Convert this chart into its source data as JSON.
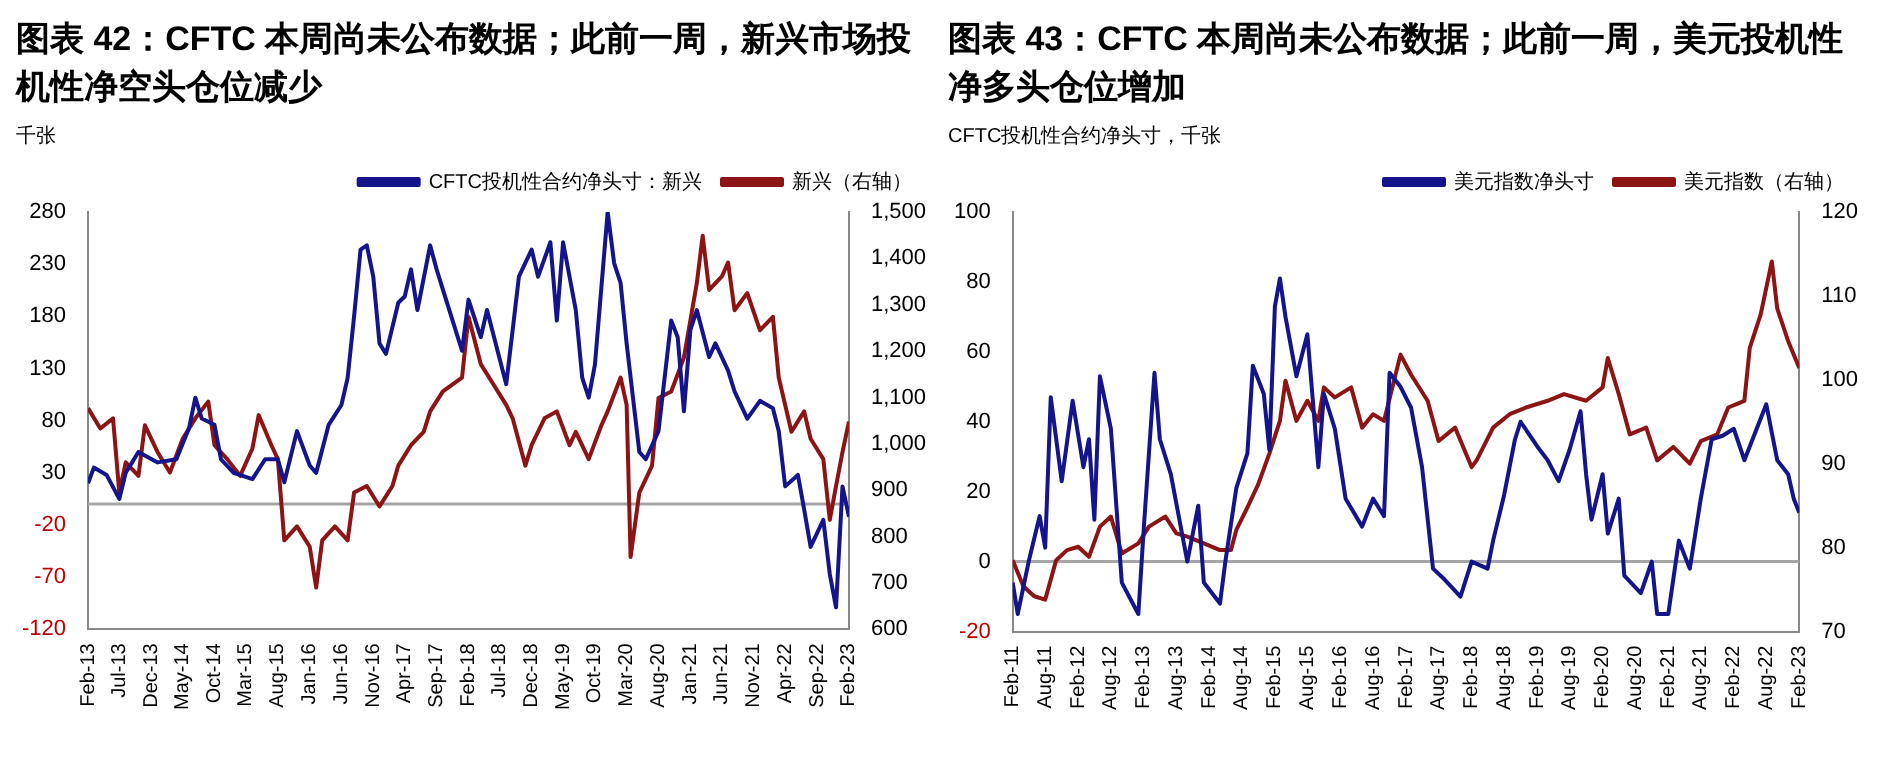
{
  "chart_data": [
    {
      "type": "line",
      "title": "图表 42：CFTC 本周尚未公布数据；此前一周，新兴市场投机性净空头仓位减少",
      "ylabel": "千张",
      "legend": "top",
      "xlim": [
        "2013-02",
        "2023-02"
      ],
      "xticks": [
        {
          "value": "2013-02",
          "label": "Feb-13"
        },
        {
          "value": "2013-07",
          "label": "Jul-13"
        },
        {
          "value": "2013-12",
          "label": "Dec-13"
        },
        {
          "value": "2014-05",
          "label": "May-14"
        },
        {
          "value": "2014-10",
          "label": "Oct-14"
        },
        {
          "value": "2015-03",
          "label": "Mar-15"
        },
        {
          "value": "2015-08",
          "label": "Aug-15"
        },
        {
          "value": "2016-01",
          "label": "Jan-16"
        },
        {
          "value": "2016-06",
          "label": "Jun-16"
        },
        {
          "value": "2016-11",
          "label": "Nov-16"
        },
        {
          "value": "2017-04",
          "label": "Apr-17"
        },
        {
          "value": "2017-09",
          "label": "Sep-17"
        },
        {
          "value": "2018-02",
          "label": "Feb-18"
        },
        {
          "value": "2018-07",
          "label": "Jul-18"
        },
        {
          "value": "2018-12",
          "label": "Dec-18"
        },
        {
          "value": "2019-05",
          "label": "May-19"
        },
        {
          "value": "2019-10",
          "label": "Oct-19"
        },
        {
          "value": "2020-03",
          "label": "Mar-20"
        },
        {
          "value": "2020-08",
          "label": "Aug-20"
        },
        {
          "value": "2021-01",
          "label": "Jan-21"
        },
        {
          "value": "2021-06",
          "label": "Jun-21"
        },
        {
          "value": "2021-11",
          "label": "Nov-21"
        },
        {
          "value": "2022-04",
          "label": "Apr-22"
        },
        {
          "value": "2022-09",
          "label": "Sep-22"
        },
        {
          "value": "2023-02",
          "label": "Feb-23"
        }
      ],
      "ylim": [
        -120,
        280
      ],
      "yticks": [
        -120,
        -70,
        -20,
        30,
        80,
        130,
        180,
        230,
        280
      ],
      "y2lim": [
        600,
        1500
      ],
      "y2ticks": [
        600,
        700,
        800,
        900,
        {
          "value": 1000,
          "label": "1,000"
        },
        {
          "value": 1100,
          "label": "1,100"
        },
        {
          "value": 1200,
          "label": "1,200"
        },
        {
          "value": 1300,
          "label": "1,300"
        },
        {
          "value": 1400,
          "label": "1,400"
        },
        {
          "value": 1500,
          "label": "1,500"
        }
      ],
      "ref_lines": [
        {
          "axis": "y",
          "value": 0,
          "color": "#a6a6a6"
        }
      ],
      "series": [
        {
          "name": "CFTC投机性合约净头寸：新兴",
          "color": "#14148c",
          "x": [
            "2013-02",
            "2013-03",
            "2013-05",
            "2013-07",
            "2013-08",
            "2013-10",
            "2014-01",
            "2014-04",
            "2014-06",
            "2014-07",
            "2014-08",
            "2014-10",
            "2014-11",
            "2015-01",
            "2015-04",
            "2015-06",
            "2015-08",
            "2015-09",
            "2015-11",
            "2016-01",
            "2016-02",
            "2016-04",
            "2016-06",
            "2016-07",
            "2016-08",
            "2016-09",
            "2016-10",
            "2016-11",
            "2016-12",
            "2017-01",
            "2017-03",
            "2017-04",
            "2017-05",
            "2017-06",
            "2017-08",
            "2017-09",
            "2017-11",
            "2018-01",
            "2018-02",
            "2018-04",
            "2018-05",
            "2018-08",
            "2018-09",
            "2018-10",
            "2018-12",
            "2019-01",
            "2019-03",
            "2019-04",
            "2019-05",
            "2019-07",
            "2019-08",
            "2019-09",
            "2019-10",
            "2019-12",
            "2020-01",
            "2020-02",
            "2020-03",
            "2020-05",
            "2020-06",
            "2020-08",
            "2020-10",
            "2020-11",
            "2020-12",
            "2021-01",
            "2021-02",
            "2021-04",
            "2021-05",
            "2021-07",
            "2021-08",
            "2021-10",
            "2021-12",
            "2022-02",
            "2022-03",
            "2022-04",
            "2022-06",
            "2022-07",
            "2022-08",
            "2022-10",
            "2022-11",
            "2022-12",
            "2023-01",
            "2023-02"
          ],
          "values": [
            20,
            35,
            28,
            5,
            30,
            50,
            40,
            43,
            73,
            102,
            82,
            76,
            43,
            30,
            24,
            43,
            43,
            21,
            70,
            37,
            30,
            76,
            95,
            121,
            180,
            244,
            248,
            218,
            154,
            144,
            193,
            199,
            225,
            186,
            248,
            225,
            186,
            147,
            196,
            160,
            186,
            115,
            167,
            218,
            244,
            218,
            251,
            176,
            251,
            186,
            121,
            102,
            134,
            280,
            231,
            212,
            154,
            50,
            43,
            70,
            176,
            160,
            89,
            167,
            186,
            141,
            154,
            128,
            108,
            82,
            99,
            92,
            70,
            17,
            28,
            -5,
            -41,
            -15,
            -67,
            -99,
            17,
            -12
          ]
        },
        {
          "name": "新兴（右轴）",
          "color": "#8c1414",
          "axis": "y2",
          "x": [
            "2013-02",
            "2013-04",
            "2013-06",
            "2013-07",
            "2013-08",
            "2013-10",
            "2013-11",
            "2014-01",
            "2014-03",
            "2014-05",
            "2014-07",
            "2014-09",
            "2014-10",
            "2014-12",
            "2015-02",
            "2015-04",
            "2015-05",
            "2015-07",
            "2015-08",
            "2015-09",
            "2015-11",
            "2016-01",
            "2016-02",
            "2016-03",
            "2016-05",
            "2016-07",
            "2016-08",
            "2016-10",
            "2016-12",
            "2017-02",
            "2017-03",
            "2017-05",
            "2017-07",
            "2017-08",
            "2017-10",
            "2018-01",
            "2018-02",
            "2018-04",
            "2018-06",
            "2018-08",
            "2018-09",
            "2018-11",
            "2018-12",
            "2019-02",
            "2019-04",
            "2019-06",
            "2019-07",
            "2019-09",
            "2019-11",
            "2019-12",
            "2020-02",
            "2020-03-01",
            "2020-03-20",
            "2020-05",
            "2020-07",
            "2020-08",
            "2020-10",
            "2020-12",
            "2021-02",
            "2021-03",
            "2021-04",
            "2021-06",
            "2021-07",
            "2021-08",
            "2021-10",
            "2021-12",
            "2022-02",
            "2022-03",
            "2022-05",
            "2022-07",
            "2022-08",
            "2022-10",
            "2022-11",
            "2022-12",
            "2023-01",
            "2023-02"
          ],
          "values": [
            1077,
            1033,
            1055,
            895,
            960,
            931,
            1040,
            982,
            938,
            1011,
            1055,
            1091,
            997,
            967,
            931,
            990,
            1062,
            997,
            967,
            792,
            822,
            778,
            690,
            792,
            822,
            792,
            895,
            909,
            865,
            909,
            953,
            997,
            1026,
            1070,
            1113,
            1143,
            1274,
            1172,
            1128,
            1084,
            1055,
            953,
            997,
            1055,
            1070,
            997,
            1026,
            967,
            1040,
            1070,
            1143,
            1084,
            756,
            895,
            953,
            1099,
            1113,
            1186,
            1347,
            1449,
            1332,
            1361,
            1391,
            1288,
            1325,
            1245,
            1274,
            1143,
            1026,
            1070,
            1011,
            967,
            836,
            909,
            982,
            1048
          ]
        }
      ]
    },
    {
      "type": "line",
      "title": "图表 43：CFTC 本周尚未公布数据；此前一周，美元投机性净多头仓位增加",
      "ylabel": "CFTC投机性合约净头寸，千张",
      "legend": "top",
      "xlim": [
        "2011-02",
        "2023-02"
      ],
      "xticks": [
        {
          "value": "2011-02",
          "label": "Feb-11"
        },
        {
          "value": "2011-08",
          "label": "Aug-11"
        },
        {
          "value": "2012-02",
          "label": "Feb-12"
        },
        {
          "value": "2012-08",
          "label": "Aug-12"
        },
        {
          "value": "2013-02",
          "label": "Feb-13"
        },
        {
          "value": "2013-08",
          "label": "Aug-13"
        },
        {
          "value": "2014-02",
          "label": "Feb-14"
        },
        {
          "value": "2014-08",
          "label": "Aug-14"
        },
        {
          "value": "2015-02",
          "label": "Feb-15"
        },
        {
          "value": "2015-08",
          "label": "Aug-15"
        },
        {
          "value": "2016-02",
          "label": "Feb-16"
        },
        {
          "value": "2016-08",
          "label": "Aug-16"
        },
        {
          "value": "2017-02",
          "label": "Feb-17"
        },
        {
          "value": "2017-08",
          "label": "Aug-17"
        },
        {
          "value": "2018-02",
          "label": "Feb-18"
        },
        {
          "value": "2018-08",
          "label": "Aug-18"
        },
        {
          "value": "2019-02",
          "label": "Feb-19"
        },
        {
          "value": "2019-08",
          "label": "Aug-19"
        },
        {
          "value": "2020-02",
          "label": "Feb-20"
        },
        {
          "value": "2020-08",
          "label": "Aug-20"
        },
        {
          "value": "2021-02",
          "label": "Feb-21"
        },
        {
          "value": "2021-08",
          "label": "Aug-21"
        },
        {
          "value": "2022-02",
          "label": "Feb-22"
        },
        {
          "value": "2022-08",
          "label": "Aug-22"
        },
        {
          "value": "2023-02",
          "label": "Feb-23"
        }
      ],
      "ylim": [
        -20,
        100
      ],
      "yticks": [
        -20,
        0,
        20,
        40,
        60,
        80,
        100
      ],
      "y2lim": [
        70,
        120
      ],
      "y2ticks": [
        70,
        80,
        90,
        100,
        110,
        120
      ],
      "ref_lines": [
        {
          "axis": "y",
          "value": 0,
          "color": "#a6a6a6"
        }
      ],
      "series": [
        {
          "name": "美元指数净头寸",
          "color": "#14148c",
          "x": [
            "2011-02",
            "2011-03",
            "2011-05",
            "2011-07",
            "2011-08",
            "2011-09",
            "2011-11",
            "2012-01",
            "2012-03",
            "2012-04",
            "2012-05",
            "2012-06",
            "2012-08",
            "2012-10",
            "2013-01",
            "2013-02",
            "2013-04",
            "2013-05",
            "2013-07",
            "2013-10",
            "2013-12",
            "2014-01",
            "2014-04",
            "2014-05",
            "2014-07",
            "2014-09",
            "2014-10",
            "2014-12",
            "2015-01",
            "2015-02",
            "2015-03",
            "2015-04",
            "2015-06",
            "2015-08",
            "2015-10",
            "2015-11",
            "2016-01",
            "2016-03",
            "2016-06",
            "2016-08",
            "2016-10",
            "2016-11",
            "2017-01",
            "2017-03",
            "2017-05",
            "2017-07",
            "2017-09",
            "2017-12",
            "2018-02",
            "2018-05",
            "2018-06",
            "2018-08",
            "2018-10",
            "2018-11",
            "2019-02",
            "2019-04",
            "2019-06",
            "2019-08",
            "2019-10",
            "2019-11",
            "2019-12",
            "2020-02",
            "2020-03",
            "2020-05",
            "2020-06",
            "2020-09",
            "2020-11",
            "2020-12",
            "2021-02",
            "2021-04",
            "2021-05",
            "2021-06",
            "2021-08",
            "2021-10",
            "2021-12",
            "2022-02",
            "2022-04",
            "2022-06",
            "2022-08",
            "2022-10",
            "2022-12",
            "2023-01",
            "2023-02"
          ],
          "values": [
            -6,
            -15,
            0,
            13,
            4,
            47,
            23,
            46,
            27,
            35,
            12,
            53,
            38,
            -6,
            -15,
            10,
            54,
            35,
            25,
            0,
            16,
            -6,
            -12,
            0,
            21,
            31,
            56,
            48,
            32,
            73,
            81,
            70,
            53,
            65,
            27,
            48,
            38,
            18,
            10,
            18,
            13,
            54,
            50,
            44,
            27,
            -2,
            -5,
            -10,
            0,
            -2,
            6,
            19,
            35,
            40,
            33,
            29,
            23,
            32,
            43,
            25,
            12,
            25,
            8,
            18,
            -4,
            -9,
            0,
            -15,
            -15,
            6,
            2,
            -2,
            18,
            35,
            36,
            38,
            29,
            37,
            45,
            29,
            25,
            18,
            14
          ]
        },
        {
          "name": "美元指数（右轴）",
          "color": "#8c1414",
          "axis": "y2",
          "x": [
            "2011-02",
            "2011-04",
            "2011-06",
            "2011-08",
            "2011-10",
            "2011-12",
            "2012-02",
            "2012-04",
            "2012-06",
            "2012-08",
            "2012-10",
            "2013-01",
            "2013-03",
            "2013-06",
            "2013-08",
            "2013-10",
            "2014-01",
            "2014-04",
            "2014-06",
            "2014-07",
            "2014-09",
            "2014-11",
            "2015-01",
            "2015-03",
            "2015-04",
            "2015-06",
            "2015-08",
            "2015-10",
            "2015-11",
            "2016-01",
            "2016-04",
            "2016-06",
            "2016-08",
            "2016-10",
            "2017-01",
            "2017-03",
            "2017-06",
            "2017-08",
            "2017-11",
            "2018-02",
            "2018-03",
            "2018-06",
            "2018-09",
            "2018-12",
            "2019-04",
            "2019-07",
            "2019-11",
            "2020-02",
            "2020-03",
            "2020-05",
            "2020-07",
            "2020-10",
            "2020-12",
            "2021-03",
            "2021-06",
            "2021-08",
            "2021-11",
            "2022-01",
            "2022-04",
            "2022-05",
            "2022-07",
            "2022-09",
            "2022-10",
            "2022-12",
            "2023-02"
          ],
          "values": [
            78.5,
            75.4,
            74.2,
            73.8,
            78.5,
            79.7,
            80.1,
            78.9,
            82.5,
            83.7,
            79.3,
            80.5,
            82.5,
            83.7,
            81.7,
            81.3,
            80.5,
            79.7,
            79.7,
            82.1,
            84.8,
            87.6,
            91.2,
            95.1,
            99.9,
            95.1,
            97.5,
            95.1,
            99.1,
            97.9,
            99.1,
            94.3,
            95.9,
            95.1,
            103,
            100.6,
            97.5,
            92.7,
            94.3,
            89.6,
            90.4,
            94.3,
            95.9,
            96.7,
            97.5,
            98.3,
            97.5,
            99.1,
            102.6,
            98.3,
            93.5,
            94.3,
            90.4,
            92,
            90,
            92.7,
            93.5,
            96.7,
            97.5,
            103.8,
            107.8,
            114.1,
            108.5,
            104.6,
            101.4
          ]
        }
      ]
    }
  ]
}
